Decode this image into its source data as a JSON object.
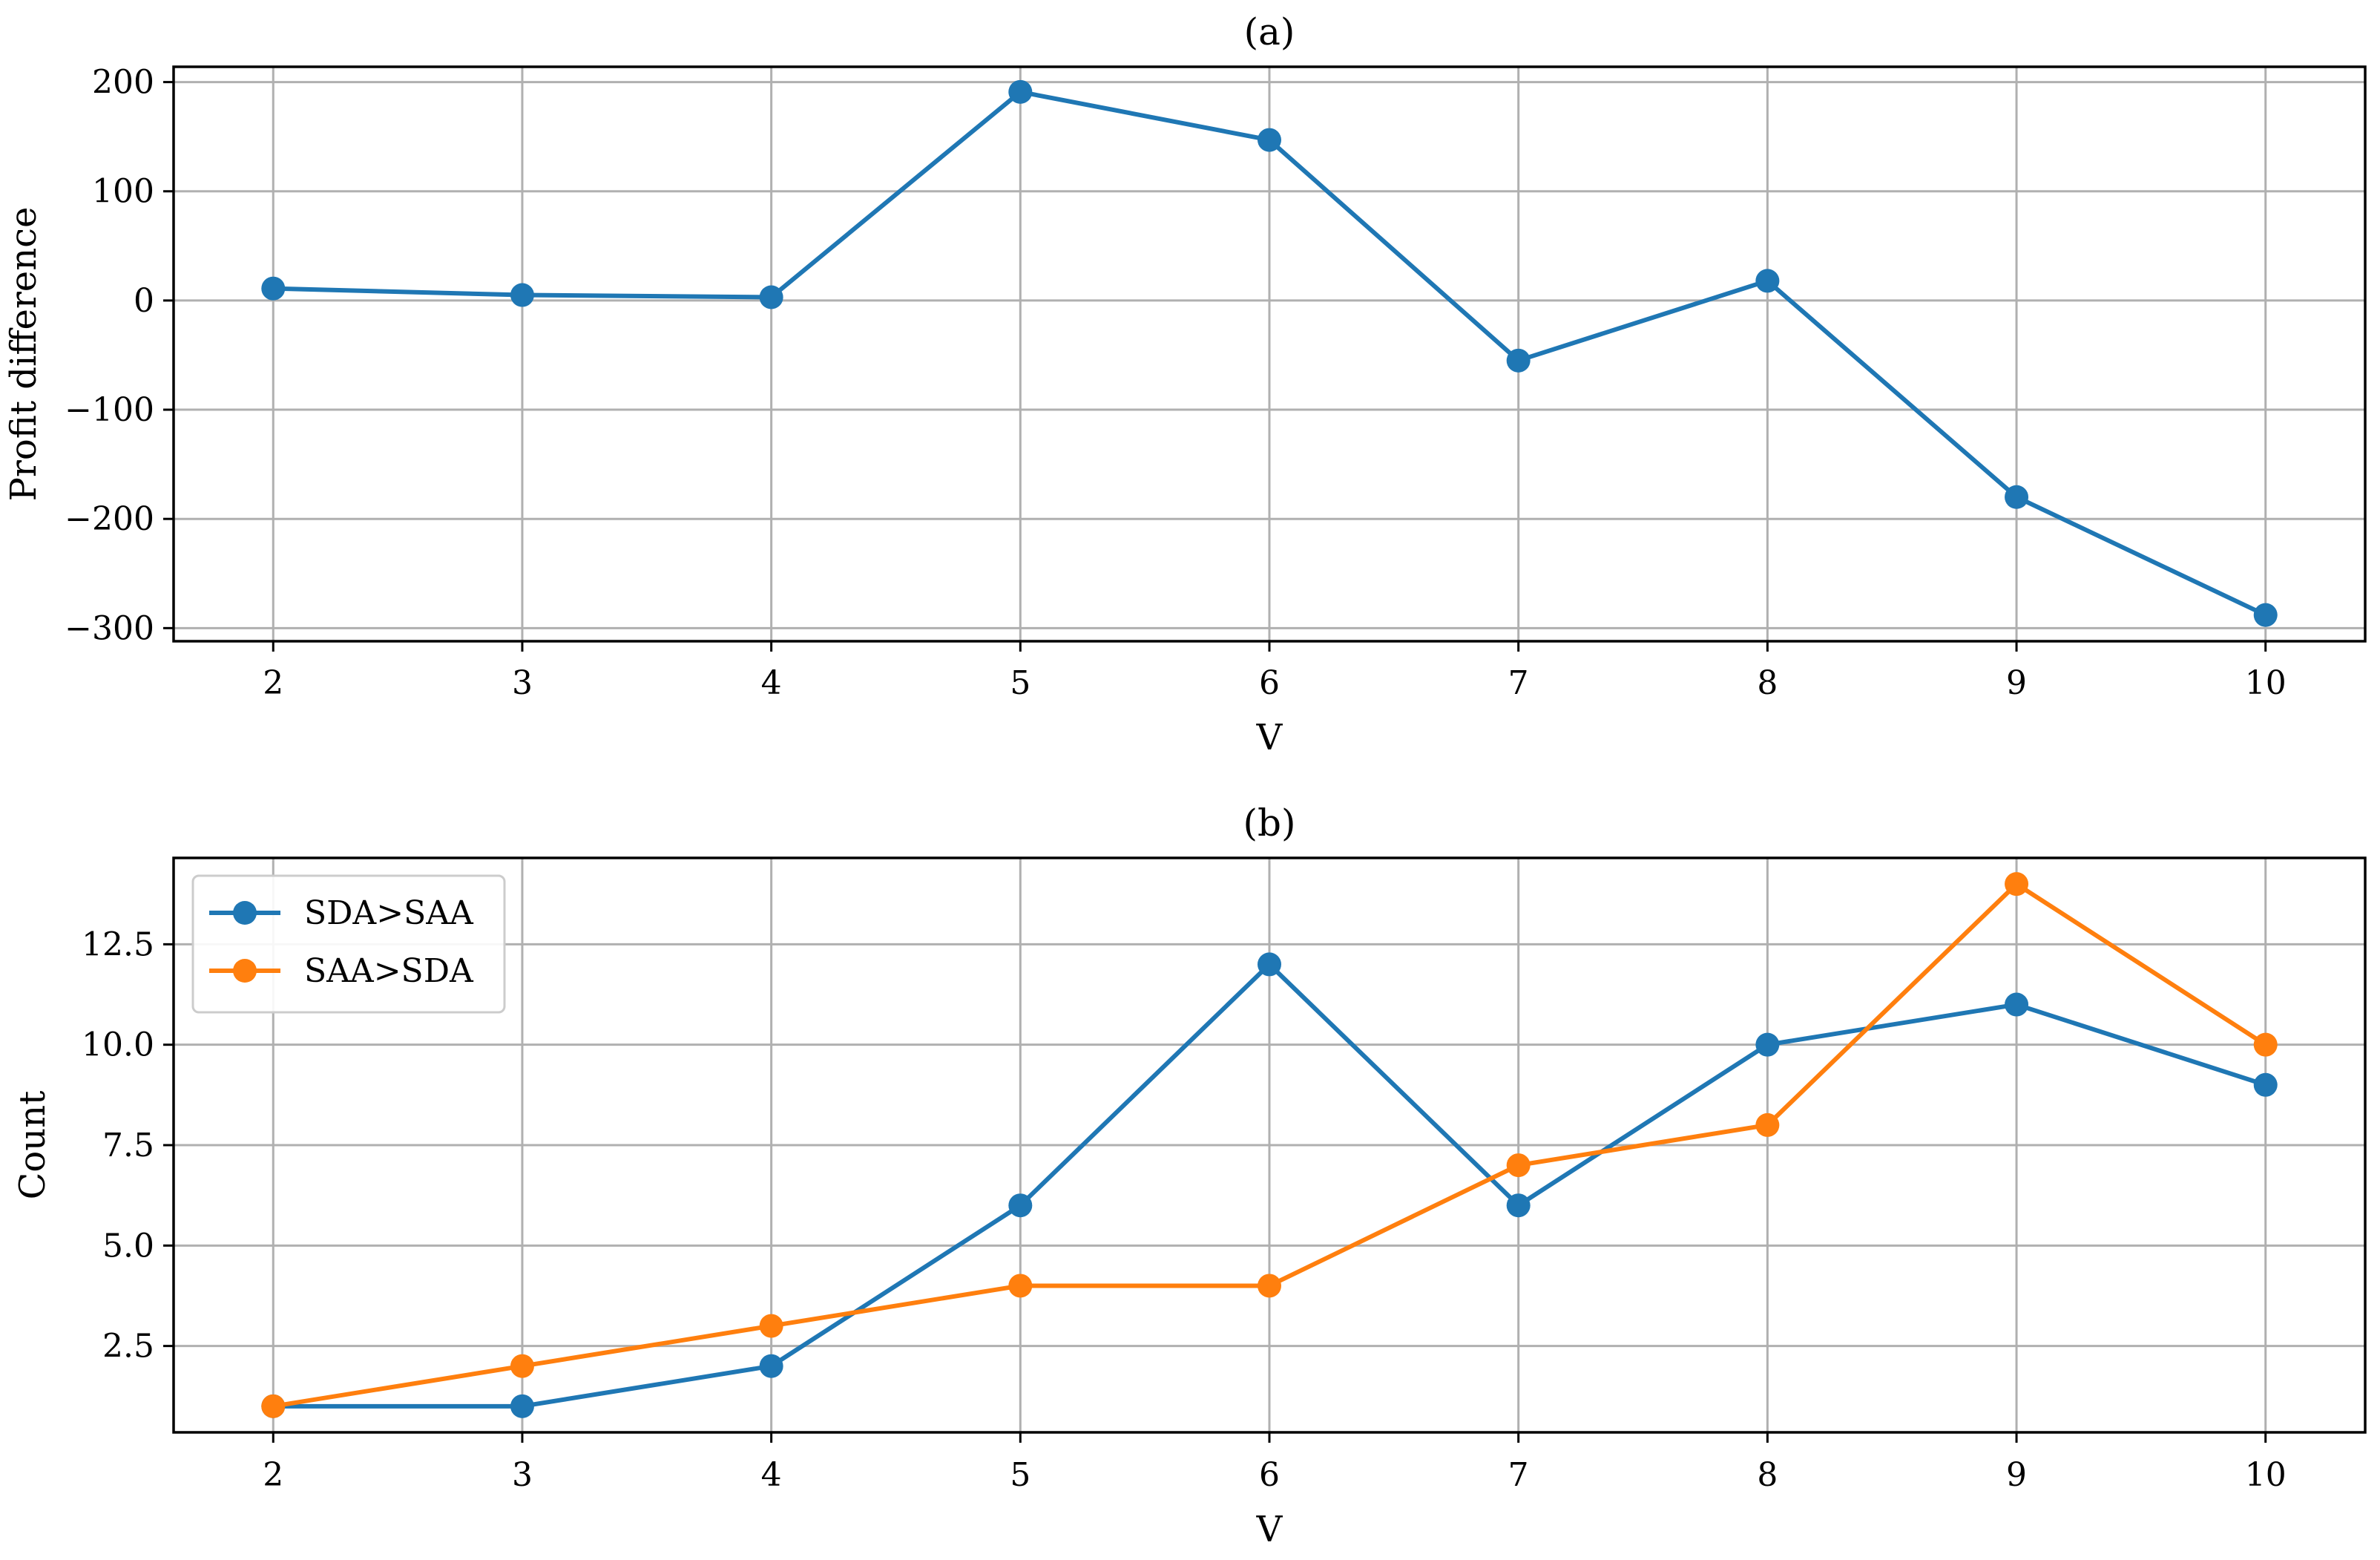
{
  "chart_data": [
    {
      "type": "line",
      "title": "(a)",
      "xlabel": "V",
      "ylabel": "Profit difference",
      "x": [
        2,
        3,
        4,
        5,
        6,
        7,
        8,
        9,
        10
      ],
      "xticks": [
        "2",
        "3",
        "4",
        "5",
        "6",
        "7",
        "8",
        "9",
        "10"
      ],
      "yticks": [
        "200",
        "100",
        "0",
        "−100",
        "−200",
        "−300"
      ],
      "ytick_values": [
        200,
        100,
        0,
        -100,
        -200,
        -300
      ],
      "ylim": [
        -312,
        214
      ],
      "xlim": [
        1.6,
        10.4
      ],
      "grid": true,
      "series": [
        {
          "color": "#1f77b4",
          "values": [
            11,
            5,
            3,
            191,
            147,
            -55,
            18,
            -180,
            -288
          ]
        }
      ]
    },
    {
      "type": "line",
      "title": "(b)",
      "xlabel": "V",
      "ylabel": "Count",
      "x": [
        2,
        3,
        4,
        5,
        6,
        7,
        8,
        9,
        10
      ],
      "xticks": [
        "2",
        "3",
        "4",
        "5",
        "6",
        "7",
        "8",
        "9",
        "10"
      ],
      "yticks": [
        "12.5",
        "10.0",
        "7.5",
        "5.0",
        "2.5"
      ],
      "ytick_values": [
        12.5,
        10.0,
        7.5,
        5.0,
        2.5
      ],
      "ylim": [
        0.35,
        14.65
      ],
      "xlim": [
        1.6,
        10.4
      ],
      "grid": true,
      "legend_position": "top-left",
      "series": [
        {
          "name": "SDA>SAA",
          "color": "#1f77b4",
          "values": [
            1,
            1,
            2,
            6,
            12,
            6,
            10,
            11,
            9
          ]
        },
        {
          "name": "SAA>SDA",
          "color": "#ff7f0e",
          "values": [
            1,
            2,
            3,
            4,
            4,
            7,
            8,
            14,
            10
          ]
        }
      ]
    }
  ]
}
